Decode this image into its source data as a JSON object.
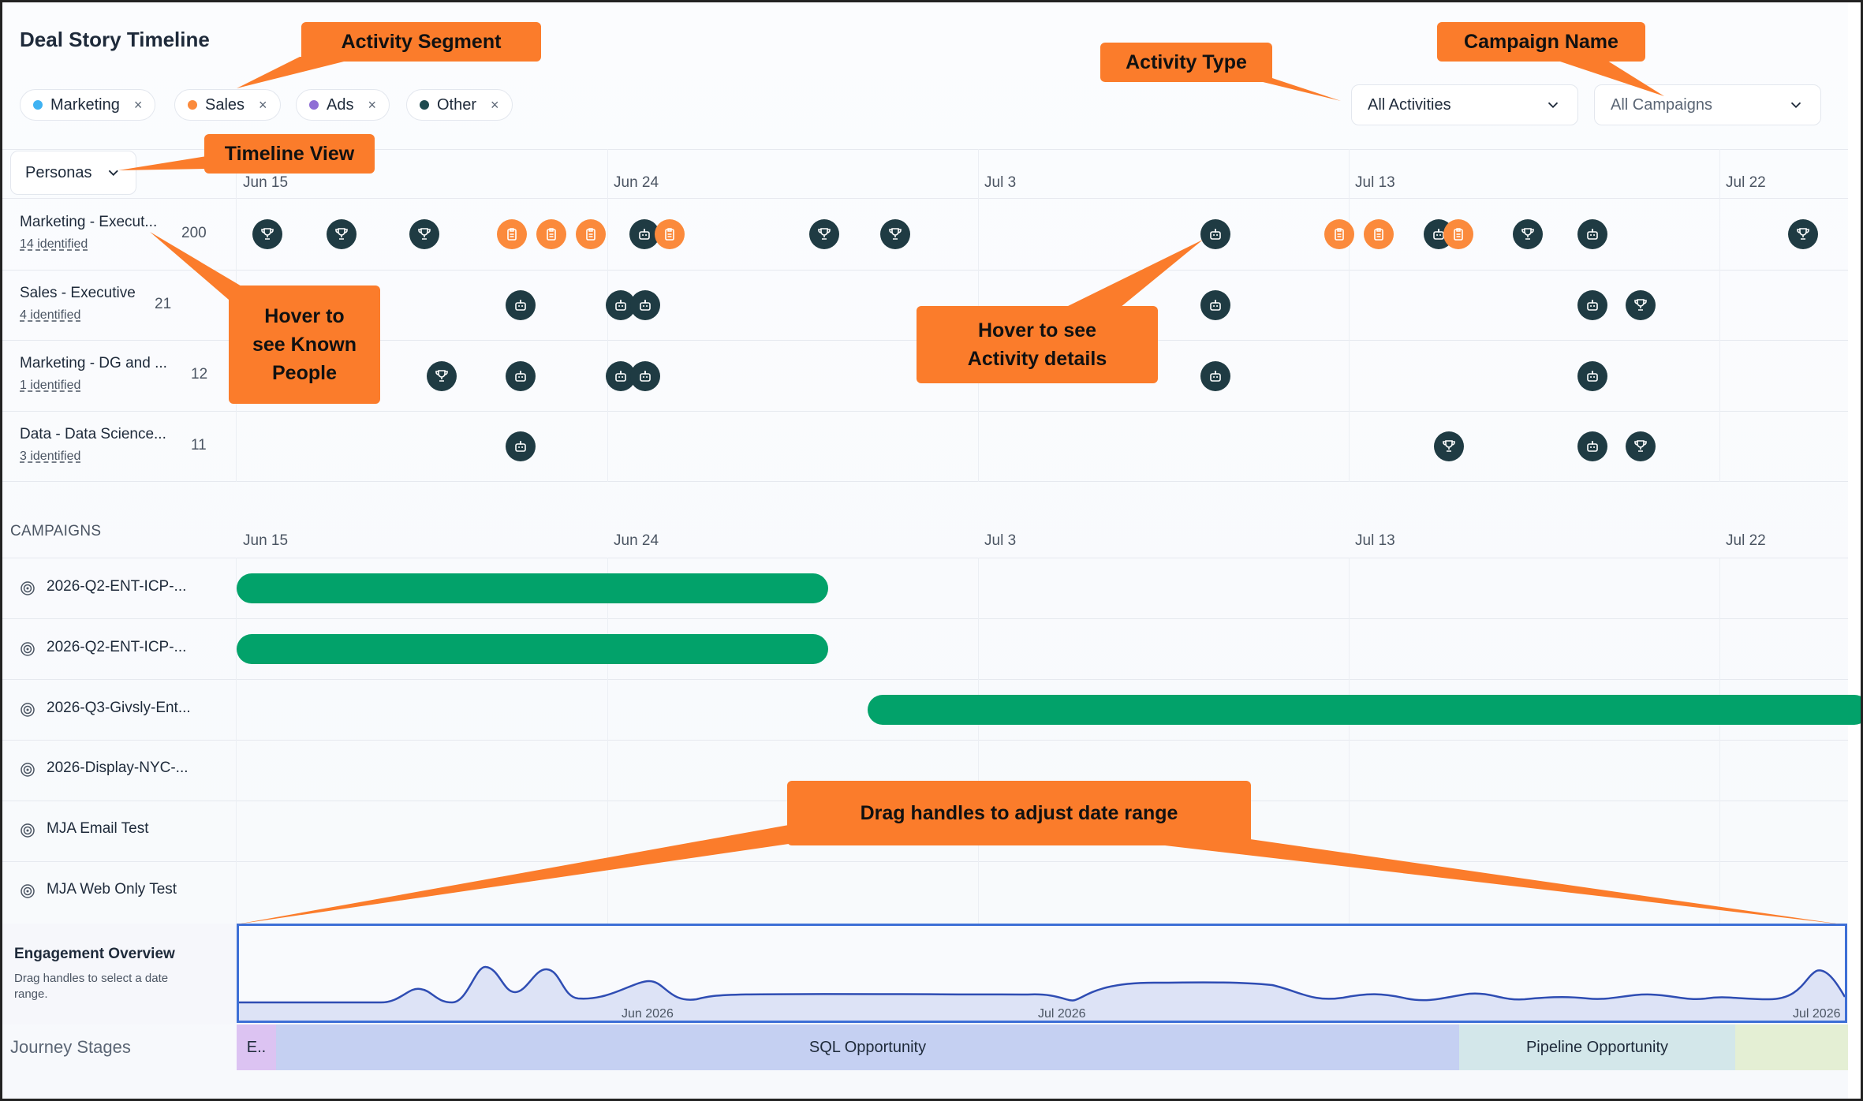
{
  "title": "Deal Story Timeline",
  "segments": [
    {
      "label": "Marketing",
      "color": "#3fb2f2"
    },
    {
      "label": "Sales",
      "color": "#fb8a3c"
    },
    {
      "label": "Ads",
      "color": "#8f6ed5"
    },
    {
      "label": "Other",
      "color": "#1f4b4f"
    }
  ],
  "chip_remove": "×",
  "activity_filter": "All Activities",
  "campaign_filter": "All Campaigns",
  "view_select": "Personas",
  "dates": [
    "Jun 15",
    "Jun 24",
    "Jul 3",
    "Jul 13",
    "Jul 22"
  ],
  "personas": [
    {
      "name": "Marketing - Execut...",
      "identified": "14 identified",
      "count": "200"
    },
    {
      "name": "Sales - Executive",
      "identified": "4 identified",
      "count": "21"
    },
    {
      "name": "Marketing - DG and ...",
      "identified": "1 identified",
      "count": "12"
    },
    {
      "name": "Data - Data Science...",
      "identified": "3 identified",
      "count": "11"
    }
  ],
  "campaigns_header": "CAMPAIGNS",
  "campaigns": [
    {
      "name": "2026-Q2-ENT-ICP-..."
    },
    {
      "name": "2026-Q2-ENT-ICP-..."
    },
    {
      "name": "2026-Q3-Givsly-Ent..."
    },
    {
      "name": "2026-Display-NYC-..."
    },
    {
      "name": "MJA Email Test"
    },
    {
      "name": "MJA Web Only Test"
    }
  ],
  "overview": {
    "title": "Engagement Overview",
    "subtitle": "Drag handles to select a date range.",
    "ticks": [
      "Jun 2026",
      "Jul 2026",
      "Jul 2026"
    ]
  },
  "journey": {
    "label": "Journey Stages",
    "stages": [
      {
        "name": "E..",
        "color": "#dcc3f2"
      },
      {
        "name": "SQL Opportunity",
        "color": "#c5d0f2"
      },
      {
        "name": "Pipeline Opportunity",
        "color": "#d3e7ea"
      },
      {
        "name": "",
        "color": "#e4efd4"
      }
    ]
  },
  "callouts": {
    "activity_segment": "Activity Segment",
    "activity_type": "Activity Type",
    "campaign_name": "Campaign Name",
    "timeline_view": "Timeline View",
    "known_people_1": "Hover to",
    "known_people_2": "see Known",
    "known_people_3": "People",
    "activity_details_1": "Hover to see",
    "activity_details_2": "Activity details",
    "drag_handles": "Drag handles to adjust date range"
  },
  "icons": {
    "trophy": "trophy-icon",
    "robot": "robot-icon",
    "clipboard": "clipboard-icon",
    "target": "target-icon",
    "chevron": "chevron-down-icon"
  }
}
